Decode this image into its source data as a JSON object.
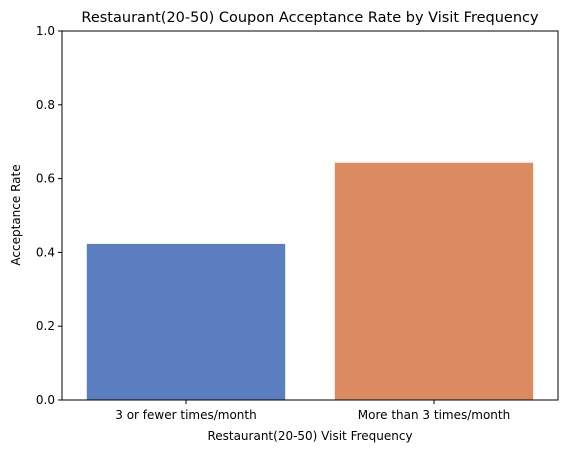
{
  "chart_data": {
    "type": "bar",
    "title": "Restaurant(20-50) Coupon Acceptance Rate by Visit Frequency",
    "xlabel": "Restaurant(20-50) Visit Frequency",
    "ylabel": "Acceptance Rate",
    "categories": [
      "3 or fewer times/month",
      "More than 3 times/month"
    ],
    "values": [
      0.423,
      0.643
    ],
    "colors": [
      "#5b7ec1",
      "#db8b5f"
    ],
    "ylim": [
      0,
      1.0
    ],
    "yticks": [
      0.0,
      0.2,
      0.4,
      0.6,
      0.8,
      1.0
    ],
    "ytick_labels": [
      "0.0",
      "0.2",
      "0.4",
      "0.6",
      "0.8",
      "1.0"
    ],
    "grid": false,
    "legend": "none"
  }
}
